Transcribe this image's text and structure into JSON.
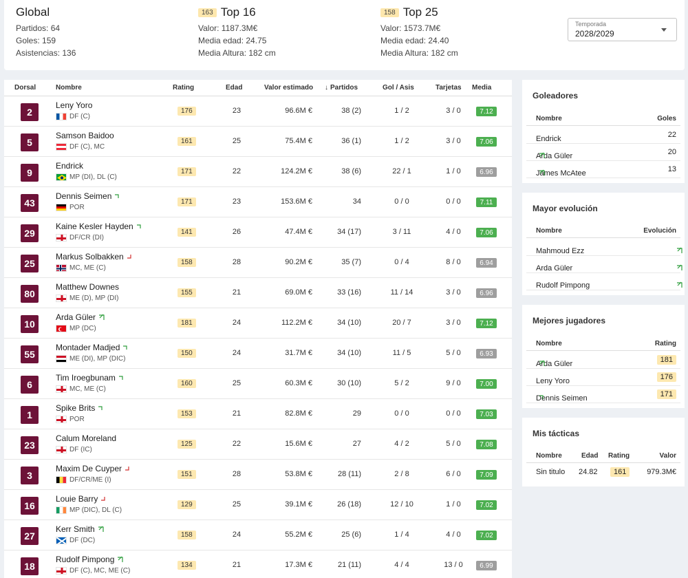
{
  "summary": {
    "global": {
      "title": "Global",
      "partidos": "Partidos: 64",
      "goles": "Goles: 159",
      "asistencias": "Asistencias: 136"
    },
    "top16": {
      "badge": "163",
      "title": "Top 16",
      "valor": "Valor: 1187.3M€",
      "edad": "Media edad: 24.75",
      "altura": "Media Altura: 182 cm"
    },
    "top25": {
      "badge": "158",
      "title": "Top 25",
      "valor": "Valor: 1573.7M€",
      "edad": "Media edad: 24.40",
      "altura": "Media Altura: 182 cm"
    },
    "season": {
      "label": "Temporada",
      "value": "2028/2029"
    }
  },
  "table": {
    "headers": {
      "dorsal": "Dorsal",
      "nombre": "Nombre",
      "rating": "Rating",
      "edad": "Edad",
      "valor": "Valor estimado",
      "partidos": "Partidos",
      "gol_asis": "Gol / Asis",
      "tarjetas": "Tarjetas",
      "media": "Media"
    },
    "sort_arrow": "↓",
    "rows": [
      {
        "dorsal": "2",
        "name": "Leny Yoro",
        "pos": "DF (C)",
        "flag": "fr",
        "trend": "",
        "rating": "176",
        "edad": "23",
        "valor": "96.6M €",
        "partidos": "38 (2)",
        "gol_asis": "1 / 2",
        "tarjetas": "3 / 0",
        "media": "7.12",
        "media_color": "#4caf50"
      },
      {
        "dorsal": "5",
        "name": "Samson Baidoo",
        "pos": "DF (C), MC",
        "flag": "at",
        "trend": "",
        "rating": "161",
        "edad": "25",
        "valor": "75.4M €",
        "partidos": "36 (1)",
        "gol_asis": "1 / 2",
        "tarjetas": "3 / 0",
        "media": "7.06",
        "media_color": "#4caf50"
      },
      {
        "dorsal": "9",
        "name": "Endrick",
        "pos": "MP (DI), DL (C)",
        "flag": "br",
        "trend": "",
        "rating": "171",
        "edad": "22",
        "valor": "124.2M €",
        "partidos": "38 (6)",
        "gol_asis": "22 / 1",
        "tarjetas": "1 / 0",
        "media": "6.96",
        "media_color": "#9e9e9e"
      },
      {
        "dorsal": "43",
        "name": "Dennis Seimen",
        "pos": "POR",
        "flag": "de",
        "trend": "up",
        "rating": "171",
        "edad": "23",
        "valor": "153.6M €",
        "partidos": "34",
        "gol_asis": "0 / 0",
        "tarjetas": "0 / 0",
        "media": "7.11",
        "media_color": "#4caf50"
      },
      {
        "dorsal": "29",
        "name": "Kaine Kesler Hayden",
        "pos": "DF/CR (DI)",
        "flag": "en",
        "trend": "up",
        "rating": "141",
        "edad": "26",
        "valor": "47.4M €",
        "partidos": "34 (17)",
        "gol_asis": "3 / 11",
        "tarjetas": "4 / 0",
        "media": "7.06",
        "media_color": "#4caf50"
      },
      {
        "dorsal": "25",
        "name": "Markus Solbakken",
        "pos": "MC, ME (C)",
        "flag": "no",
        "trend": "down",
        "rating": "158",
        "edad": "28",
        "valor": "90.2M €",
        "partidos": "35 (7)",
        "gol_asis": "0 / 4",
        "tarjetas": "8 / 0",
        "media": "6.94",
        "media_color": "#9e9e9e"
      },
      {
        "dorsal": "80",
        "name": "Matthew Downes",
        "pos": "ME (D), MP (DI)",
        "flag": "en",
        "trend": "",
        "rating": "155",
        "edad": "21",
        "valor": "69.0M €",
        "partidos": "33 (16)",
        "gol_asis": "11 / 14",
        "tarjetas": "3 / 0",
        "media": "6.96",
        "media_color": "#9e9e9e"
      },
      {
        "dorsal": "10",
        "name": "Arda Güler",
        "pos": "MP (DC)",
        "flag": "tr",
        "trend": "upup",
        "rating": "181",
        "edad": "24",
        "valor": "112.2M €",
        "partidos": "34 (10)",
        "gol_asis": "20 / 7",
        "tarjetas": "3 / 0",
        "media": "7.12",
        "media_color": "#4caf50"
      },
      {
        "dorsal": "55",
        "name": "Montader Madjed",
        "pos": "ME (DI), MP (DIC)",
        "flag": "iq",
        "trend": "up",
        "rating": "150",
        "edad": "24",
        "valor": "31.7M €",
        "partidos": "34 (10)",
        "gol_asis": "11 / 5",
        "tarjetas": "5 / 0",
        "media": "6.93",
        "media_color": "#9e9e9e"
      },
      {
        "dorsal": "6",
        "name": "Tim Iroegbunam",
        "pos": "MC, ME (C)",
        "flag": "en",
        "trend": "up",
        "rating": "160",
        "edad": "25",
        "valor": "60.3M €",
        "partidos": "30 (10)",
        "gol_asis": "5 / 2",
        "tarjetas": "9 / 0",
        "media": "7.00",
        "media_color": "#4caf50"
      },
      {
        "dorsal": "1",
        "name": "Spike Brits",
        "pos": "POR",
        "flag": "en",
        "trend": "up",
        "rating": "153",
        "edad": "21",
        "valor": "82.8M €",
        "partidos": "29",
        "gol_asis": "0 / 0",
        "tarjetas": "0 / 0",
        "media": "7.03",
        "media_color": "#4caf50"
      },
      {
        "dorsal": "23",
        "name": "Calum Moreland",
        "pos": "DF (IC)",
        "flag": "en",
        "trend": "",
        "rating": "125",
        "edad": "22",
        "valor": "15.6M €",
        "partidos": "27",
        "gol_asis": "4 / 2",
        "tarjetas": "5 / 0",
        "media": "7.08",
        "media_color": "#4caf50"
      },
      {
        "dorsal": "3",
        "name": "Maxim De Cuyper",
        "pos": "DF/CR/ME (I)",
        "flag": "be",
        "trend": "down",
        "rating": "151",
        "edad": "28",
        "valor": "53.8M €",
        "partidos": "28 (11)",
        "gol_asis": "2 / 8",
        "tarjetas": "6 / 0",
        "media": "7.09",
        "media_color": "#4caf50"
      },
      {
        "dorsal": "16",
        "name": "Louie Barry",
        "pos": "MP (DIC), DL (C)",
        "flag": "ie",
        "trend": "down",
        "rating": "129",
        "edad": "25",
        "valor": "39.1M €",
        "partidos": "26 (18)",
        "gol_asis": "12 / 10",
        "tarjetas": "1 / 0",
        "media": "7.02",
        "media_color": "#4caf50"
      },
      {
        "dorsal": "27",
        "name": "Kerr Smith",
        "pos": "DF (DC)",
        "flag": "sc",
        "trend": "upup",
        "rating": "158",
        "edad": "24",
        "valor": "55.2M €",
        "partidos": "25 (6)",
        "gol_asis": "1 / 4",
        "tarjetas": "4 / 0",
        "media": "7.02",
        "media_color": "#4caf50"
      },
      {
        "dorsal": "18",
        "name": "Rudolf Pimpong",
        "pos": "DF (C), MC, ME (C)",
        "flag": "en",
        "trend": "upup",
        "rating": "134",
        "edad": "21",
        "valor": "17.3M €",
        "partidos": "21 (11)",
        "gol_asis": "4 / 4",
        "tarjetas": "13 / 0",
        "media": "6.99",
        "media_color": "#9e9e9e"
      }
    ]
  },
  "goleadores": {
    "title": "Goleadores",
    "col_nombre": "Nombre",
    "col_goles": "Goles",
    "rows": [
      {
        "name": "Endrick",
        "trend": "",
        "value": "22"
      },
      {
        "name": "Arda Güler",
        "trend": "upup",
        "value": "20"
      },
      {
        "name": "James McAtee",
        "trend": "upup",
        "value": "13"
      }
    ]
  },
  "evolucion": {
    "title": "Mayor evolución",
    "col_nombre": "Nombre",
    "col_evolucion": "Evolución",
    "rows": [
      {
        "name": "Mahmoud Ezz",
        "trend": "upup"
      },
      {
        "name": "Arda Güler",
        "trend": "upup"
      },
      {
        "name": "Rudolf Pimpong",
        "trend": "upup"
      }
    ]
  },
  "mejores": {
    "title": "Mejores jugadores",
    "col_nombre": "Nombre",
    "col_rating": "Rating",
    "rows": [
      {
        "name": "Arda Güler",
        "trend": "upup",
        "value": "181"
      },
      {
        "name": "Leny Yoro",
        "trend": "",
        "value": "176"
      },
      {
        "name": "Dennis Seimen",
        "trend": "up",
        "value": "171"
      }
    ]
  },
  "tacticas": {
    "title": "Mis tácticas",
    "col_nombre": "Nombre",
    "col_edad": "Edad",
    "col_rating": "Rating",
    "col_valor": "Valor",
    "rows": [
      {
        "name": "Sin titulo",
        "edad": "24.82",
        "rating": "161",
        "valor": "979.3M€"
      }
    ]
  },
  "colors": {
    "dorsal_bg": "#6d1238",
    "rating_badge": "#fde8b0",
    "media_good": "#4caf50",
    "media_neutral": "#9e9e9e",
    "trend_up": "#2e9e3c",
    "trend_down": "#d32f2f"
  }
}
